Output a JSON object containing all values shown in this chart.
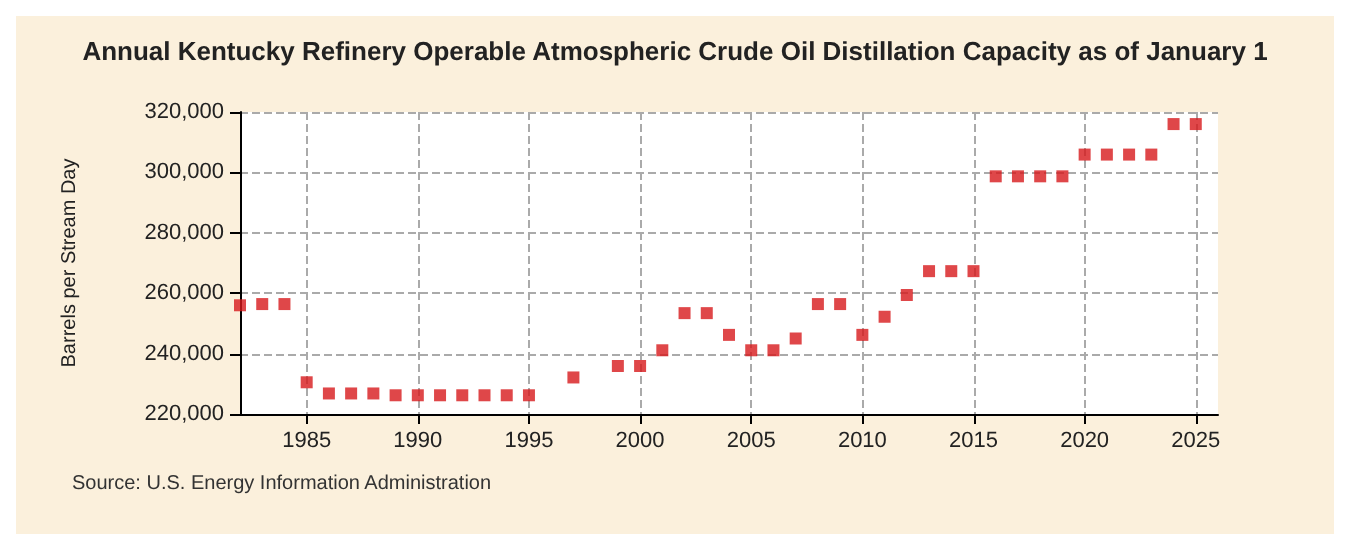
{
  "chart_data": {
    "type": "scatter",
    "title": "Annual Kentucky Refinery Operable Atmospheric Crude Oil Distillation Capacity as of January 1",
    "ylabel": "Barrels per Stream Day",
    "annotations": [
      "Source: U.S. Energy Information Administration"
    ],
    "x": [
      1982,
      1983,
      1984,
      1985,
      1986,
      1987,
      1988,
      1989,
      1990,
      1991,
      1992,
      1993,
      1994,
      1995,
      1997,
      1999,
      2000,
      2001,
      2002,
      2003,
      2004,
      2005,
      2006,
      2007,
      2008,
      2009,
      2010,
      2011,
      2012,
      2013,
      2014,
      2015,
      2016,
      2017,
      2018,
      2019,
      2020,
      2021,
      2022,
      2023,
      2024,
      2025
    ],
    "series": [
      {
        "color": "#d7191c",
        "values": [
          256000,
          256400,
          256400,
          230500,
          226800,
          226800,
          226800,
          226200,
          226200,
          226200,
          226200,
          226200,
          226200,
          226200,
          232100,
          235900,
          235900,
          241100,
          253400,
          253400,
          246200,
          241100,
          241100,
          245000,
          256400,
          256400,
          246200,
          252200,
          259400,
          267300,
          267300,
          267300,
          298700,
          298700,
          298700,
          298700,
          305900,
          305900,
          305900,
          305900,
          316000,
          316000
        ]
      }
    ],
    "xlim": [
      1982,
      2026
    ],
    "xticks": [
      1985,
      1990,
      1995,
      2000,
      2005,
      2010,
      2015,
      2020,
      2025
    ],
    "ylim": [
      220000,
      320000
    ],
    "yticks": [
      {
        "value": 220000,
        "label": "220,000"
      },
      {
        "value": 240000,
        "label": "240,000"
      },
      {
        "value": 260000,
        "label": "260,000"
      },
      {
        "value": 280000,
        "label": "280,000"
      },
      {
        "value": 300000,
        "label": "300,000"
      },
      {
        "value": 320000,
        "label": "320,000"
      }
    ],
    "grid": true,
    "marker": "square"
  }
}
